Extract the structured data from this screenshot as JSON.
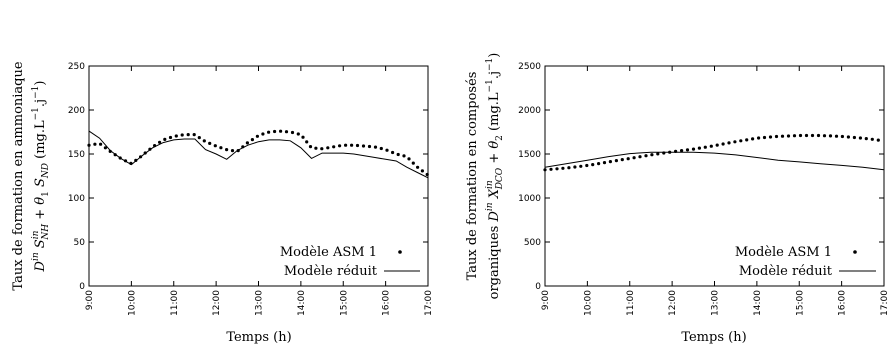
{
  "chart_data": [
    {
      "type": "line",
      "xlabel": "Temps (h)",
      "ylabel_line1": "Taux de formation en ammoniaque",
      "ylabel_line2": "D in S in NH + θ 1 S ND (mg.L⁻¹.j⁻¹)",
      "x_tick_labels": [
        "9:00",
        "10:00",
        "11:00",
        "12:00",
        "13:00",
        "14:00",
        "15:00",
        "16:00",
        "17:00"
      ],
      "xlim": [
        9,
        17
      ],
      "ylim": [
        0,
        250
      ],
      "y_ticks": [
        0,
        50,
        100,
        150,
        200,
        250
      ],
      "legend_position": "bottom-right",
      "series": [
        {
          "name": "Modèle ASM 1",
          "style": "dotted",
          "x": [
            9.0,
            9.25,
            9.5,
            9.75,
            10.0,
            10.25,
            10.5,
            10.75,
            11.0,
            11.25,
            11.5,
            11.75,
            12.0,
            12.25,
            12.5,
            12.75,
            13.0,
            13.25,
            13.5,
            13.75,
            14.0,
            14.25,
            14.5,
            14.75,
            15.0,
            15.25,
            15.5,
            15.75,
            16.0,
            16.25,
            16.5,
            16.75,
            17.0
          ],
          "values": [
            160,
            162,
            153,
            145,
            139,
            148,
            158,
            166,
            170,
            172,
            172,
            164,
            159,
            155,
            153,
            163,
            171,
            175,
            176,
            175,
            172,
            157,
            156,
            158,
            160,
            160,
            159,
            158,
            155,
            150,
            147,
            135,
            126
          ]
        },
        {
          "name": "Modèle réduit",
          "style": "solid",
          "x": [
            9.0,
            9.25,
            9.5,
            9.75,
            10.0,
            10.25,
            10.5,
            10.75,
            11.0,
            11.25,
            11.5,
            11.75,
            12.0,
            12.25,
            12.5,
            12.75,
            13.0,
            13.25,
            13.5,
            13.75,
            14.0,
            14.25,
            14.5,
            14.75,
            15.0,
            15.25,
            15.5,
            15.75,
            16.0,
            16.25,
            16.5,
            16.75,
            17.0
          ],
          "values": [
            176,
            168,
            154,
            145,
            138,
            148,
            157,
            163,
            166,
            167,
            167,
            155,
            150,
            144,
            154,
            160,
            164,
            166,
            166,
            165,
            157,
            145,
            151,
            151,
            151,
            150,
            148,
            146,
            144,
            142,
            135,
            129,
            123
          ]
        }
      ]
    },
    {
      "type": "line",
      "xlabel": "Temps (h)",
      "ylabel_line1": "Taux de formation en composés",
      "ylabel_line2": "organiques D in X in DCO + θ 2 (mg.L⁻¹.j⁻¹)",
      "x_tick_labels": [
        "9:00",
        "10:00",
        "11:00",
        "12:00",
        "13:00",
        "14:00",
        "15:00",
        "16:00",
        "17:00"
      ],
      "xlim": [
        9,
        17
      ],
      "ylim": [
        0,
        2500
      ],
      "y_ticks": [
        0,
        500,
        1000,
        1500,
        2000,
        2500
      ],
      "legend_position": "bottom-right",
      "series": [
        {
          "name": "Modèle ASM 1",
          "style": "dotted",
          "x": [
            9.0,
            9.5,
            10.0,
            10.5,
            11.0,
            11.5,
            12.0,
            12.5,
            13.0,
            13.5,
            14.0,
            14.5,
            15.0,
            15.5,
            16.0,
            16.5,
            17.0
          ],
          "values": [
            1320,
            1340,
            1370,
            1410,
            1450,
            1490,
            1525,
            1555,
            1595,
            1640,
            1680,
            1700,
            1710,
            1710,
            1700,
            1680,
            1650
          ]
        },
        {
          "name": "Modèle réduit",
          "style": "solid",
          "x": [
            9.0,
            9.5,
            10.0,
            10.5,
            11.0,
            11.5,
            12.0,
            12.5,
            13.0,
            13.5,
            14.0,
            14.5,
            15.0,
            15.5,
            16.0,
            16.5,
            17.0
          ],
          "values": [
            1350,
            1390,
            1430,
            1470,
            1505,
            1520,
            1520,
            1520,
            1510,
            1490,
            1460,
            1430,
            1410,
            1390,
            1370,
            1350,
            1320
          ]
        }
      ]
    }
  ]
}
